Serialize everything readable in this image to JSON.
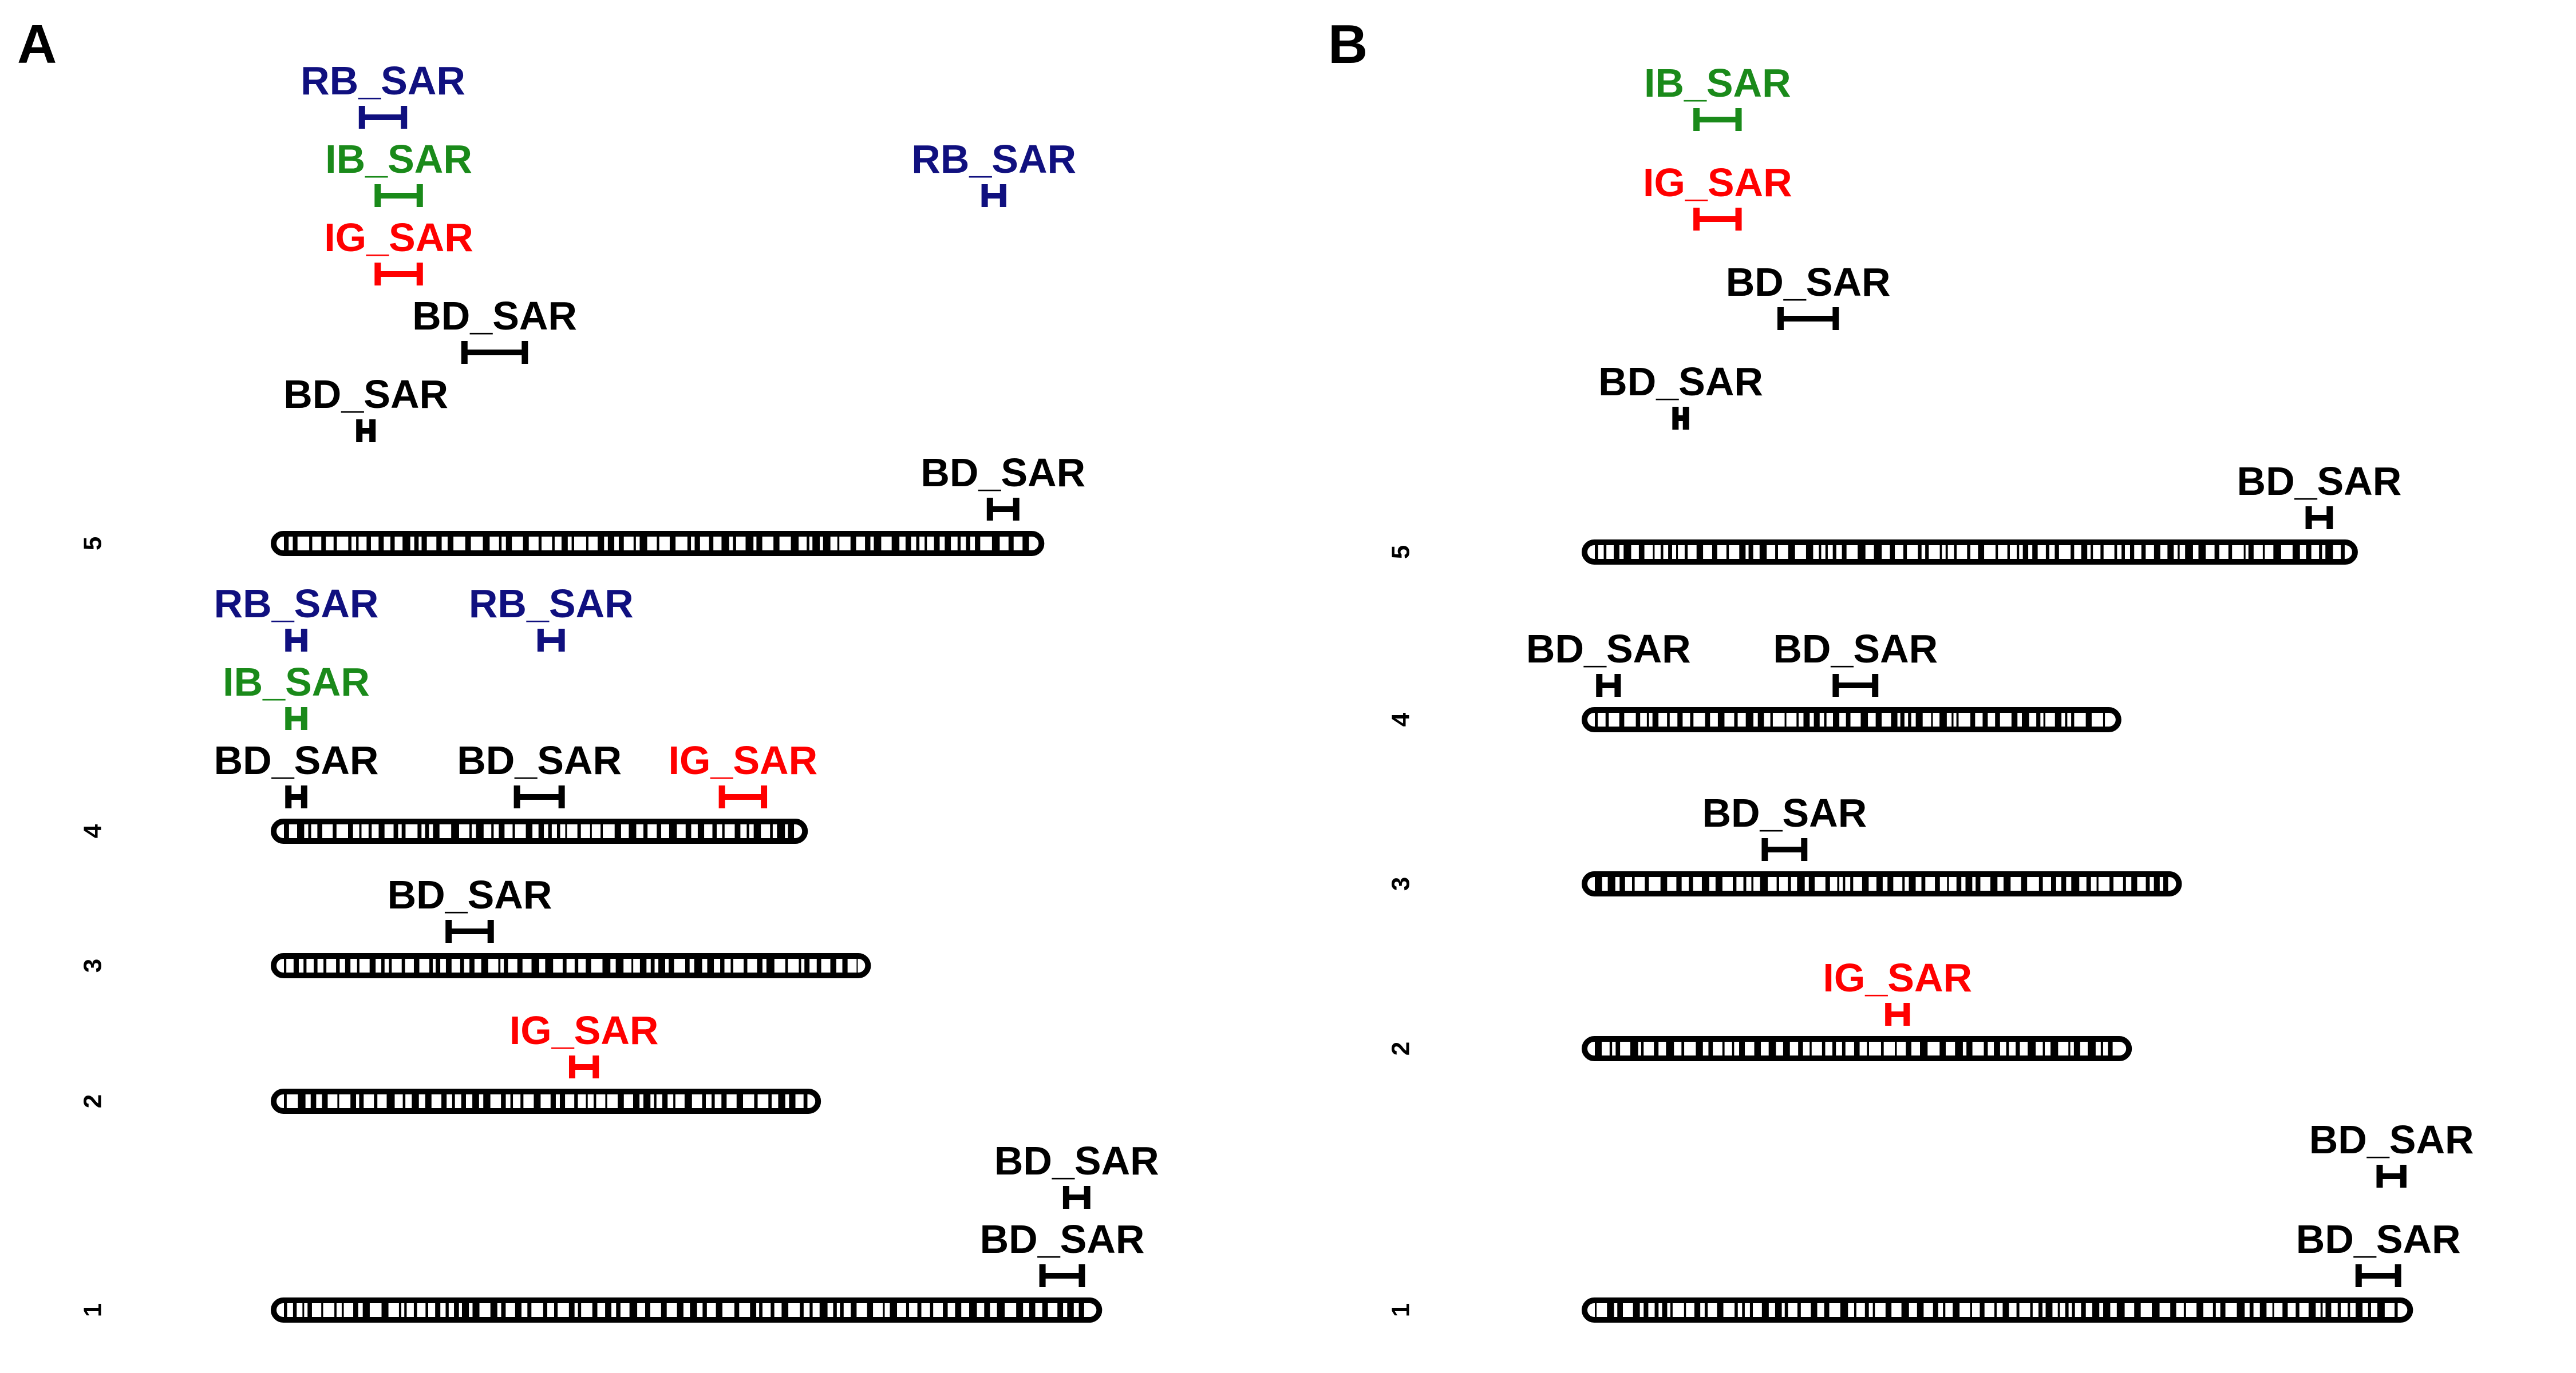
{
  "colors": {
    "RB_SAR": "#10107f",
    "IB_SAR": "#1a8a1a",
    "IG_SAR": "#ff0000",
    "BD_SAR": "#000000",
    "chromosome": "#000000"
  },
  "panels": [
    {
      "id": "A",
      "label": "A",
      "chromosomes": [
        {
          "name": "5",
          "length": 28.7
        },
        {
          "name": "4",
          "length": 19.7
        },
        {
          "name": "3",
          "length": 22.1
        },
        {
          "name": "2",
          "length": 20.2
        },
        {
          "name": "1",
          "length": 30.9
        }
      ],
      "qtls": [
        {
          "chr": "5",
          "trait": "BD_SAR",
          "start": 27.0,
          "end": 28.0,
          "row": 1
        },
        {
          "chr": "5",
          "trait": "BD_SAR",
          "start": 3.0,
          "end": 3.5,
          "row": 2
        },
        {
          "chr": "5",
          "trait": "BD_SAR",
          "start": 7.0,
          "end": 9.3,
          "row": 3
        },
        {
          "chr": "5",
          "trait": "IG_SAR",
          "start": 3.7,
          "end": 5.3,
          "row": 4
        },
        {
          "chr": "5",
          "trait": "IB_SAR",
          "start": 3.7,
          "end": 5.3,
          "row": 5
        },
        {
          "chr": "5",
          "trait": "RB_SAR",
          "start": 26.8,
          "end": 27.5,
          "row": 5
        },
        {
          "chr": "5",
          "trait": "RB_SAR",
          "start": 3.1,
          "end": 4.7,
          "row": 6
        },
        {
          "chr": "4",
          "trait": "BD_SAR",
          "start": 0.3,
          "end": 0.9,
          "row": 1
        },
        {
          "chr": "4",
          "trait": "BD_SAR",
          "start": 9.0,
          "end": 10.7,
          "row": 1
        },
        {
          "chr": "4",
          "trait": "IG_SAR",
          "start": 16.8,
          "end": 18.4,
          "row": 1
        },
        {
          "chr": "4",
          "trait": "IB_SAR",
          "start": 0.3,
          "end": 0.9,
          "row": 2
        },
        {
          "chr": "4",
          "trait": "RB_SAR",
          "start": 0.3,
          "end": 0.9,
          "row": 3
        },
        {
          "chr": "4",
          "trait": "RB_SAR",
          "start": 9.9,
          "end": 10.7,
          "row": 3
        },
        {
          "chr": "3",
          "trait": "BD_SAR",
          "start": 6.4,
          "end": 8.0,
          "row": 1
        },
        {
          "chr": "2",
          "trait": "IG_SAR",
          "start": 11.1,
          "end": 12.0,
          "row": 1
        },
        {
          "chr": "1",
          "trait": "BD_SAR",
          "start": 29.0,
          "end": 30.5,
          "row": 1
        },
        {
          "chr": "1",
          "trait": "BD_SAR",
          "start": 29.9,
          "end": 30.7,
          "row": 2
        }
      ]
    },
    {
      "id": "B",
      "label": "B",
      "chromosomes": [
        {
          "name": "5",
          "length": 28.8
        },
        {
          "name": "4",
          "length": 19.8
        },
        {
          "name": "3",
          "length": 22.1
        },
        {
          "name": "2",
          "length": 20.2
        },
        {
          "name": "1",
          "length": 30.9
        }
      ],
      "qtls": [
        {
          "chr": "5",
          "trait": "BD_SAR",
          "start": 27.3,
          "end": 28.1,
          "row": 1
        },
        {
          "chr": "5",
          "trait": "BD_SAR",
          "start": 3.2,
          "end": 3.6,
          "row": 2
        },
        {
          "chr": "5",
          "trait": "BD_SAR",
          "start": 7.2,
          "end": 9.3,
          "row": 3
        },
        {
          "chr": "5",
          "trait": "IG_SAR",
          "start": 4.0,
          "end": 5.6,
          "row": 4
        },
        {
          "chr": "5",
          "trait": "IB_SAR",
          "start": 4.0,
          "end": 5.6,
          "row": 5
        },
        {
          "chr": "4",
          "trait": "BD_SAR",
          "start": 0.3,
          "end": 1.0,
          "row": 1
        },
        {
          "chr": "4",
          "trait": "BD_SAR",
          "start": 9.3,
          "end": 10.8,
          "row": 1
        },
        {
          "chr": "3",
          "trait": "BD_SAR",
          "start": 6.6,
          "end": 8.1,
          "row": 1
        },
        {
          "chr": "2",
          "trait": "IG_SAR",
          "start": 11.3,
          "end": 12.0,
          "row": 1
        },
        {
          "chr": "1",
          "trait": "BD_SAR",
          "start": 29.2,
          "end": 30.7,
          "row": 1
        },
        {
          "chr": "1",
          "trait": "BD_SAR",
          "start": 30.0,
          "end": 30.9,
          "row": 2
        }
      ]
    }
  ]
}
